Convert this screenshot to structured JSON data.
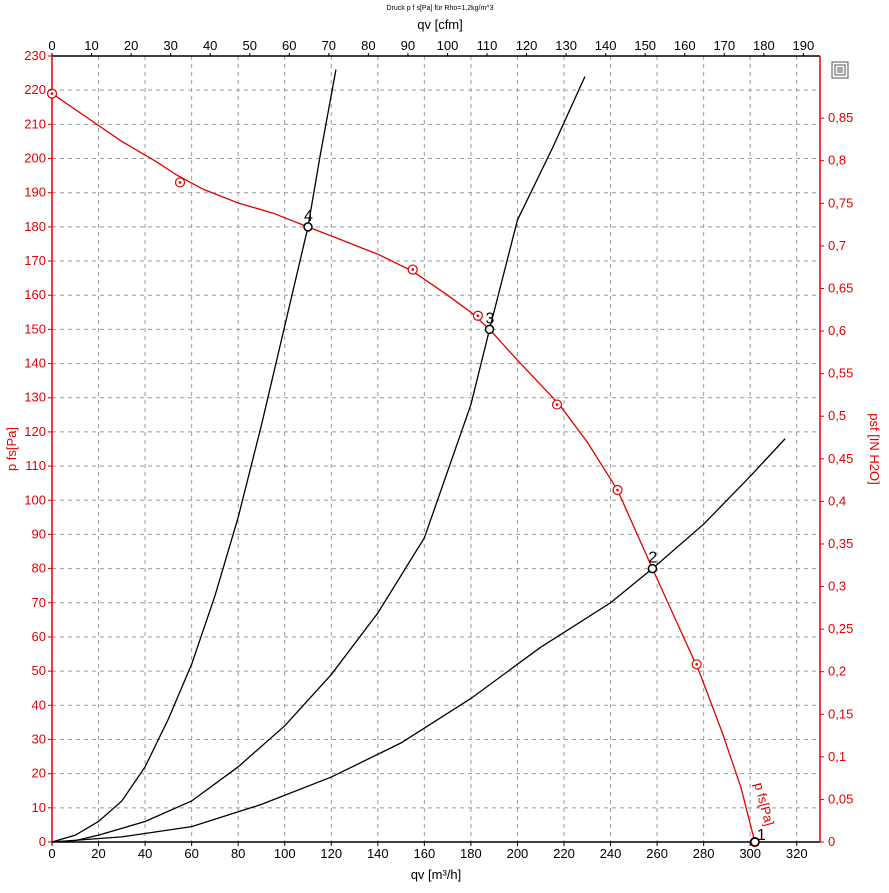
{
  "chart_data": {
    "type": "line",
    "title": "Druck p f s[Pa] für Rho=1,2kg/m^3",
    "xlabel": "qv [m³/h]",
    "x2label": "qv [cfm]",
    "ylabel": "p  fs[Pa]",
    "y2label": "psf [IN H2O]",
    "xlim": [
      0,
      330
    ],
    "ylim": [
      0,
      230
    ],
    "x2lim": [
      0,
      194.2
    ],
    "y2lim": [
      0,
      0.923
    ],
    "xticks": [
      "0",
      "20",
      "40",
      "60",
      "80",
      "100",
      "120",
      "140",
      "160",
      "180",
      "200",
      "220",
      "240",
      "260",
      "280",
      "300",
      "320"
    ],
    "x2ticks": [
      "0",
      "10",
      "20",
      "30",
      "40",
      "50",
      "60",
      "70",
      "80",
      "90",
      "100",
      "110",
      "120",
      "130",
      "140",
      "150",
      "160",
      "170",
      "180",
      "190"
    ],
    "yticks": [
      "0",
      "10",
      "20",
      "30",
      "40",
      "50",
      "60",
      "70",
      "80",
      "90",
      "100",
      "110",
      "120",
      "130",
      "140",
      "150",
      "160",
      "170",
      "180",
      "190",
      "200",
      "210",
      "220",
      "230"
    ],
    "y2ticks": [
      "0",
      "0,05",
      "0,1",
      "0,15",
      "0,2",
      "0,25",
      "0,3",
      "0,35",
      "0,4",
      "0,45",
      "0,5",
      "0,55",
      "0,6",
      "0,65",
      "0,7",
      "0,75",
      "0,8",
      "0,85"
    ],
    "grid": true,
    "series": [
      {
        "name": "p  fs[Pa]",
        "color": "#e00000",
        "x": [
          0,
          15,
          30,
          45,
          54,
          65,
          80,
          95,
          110,
          125,
          140,
          155,
          170,
          180,
          188,
          200,
          218,
          230,
          243,
          258,
          268,
          278,
          288,
          296,
          302
        ],
        "y": [
          219,
          212,
          205,
          199,
          195,
          191,
          187,
          184,
          180,
          176,
          172,
          167,
          160,
          155,
          150,
          141,
          128,
          117,
          103,
          80,
          65,
          50,
          32,
          16,
          0
        ],
        "markers_x": [
          0,
          55,
          155,
          183,
          217,
          243,
          277,
          302
        ],
        "markers_y": [
          219,
          193,
          167.5,
          154,
          128,
          103,
          52,
          0
        ]
      },
      {
        "name": "",
        "color": "#000000",
        "x": [
          0,
          30,
          60,
          90,
          120,
          150,
          180,
          210,
          240,
          258,
          280,
          300,
          315
        ],
        "y": [
          0,
          1.5,
          4.5,
          11,
          19,
          29,
          42,
          57,
          70,
          80,
          93,
          107,
          118
        ]
      },
      {
        "name": "",
        "color": "#000000",
        "x": [
          0,
          10,
          20,
          40,
          60,
          80,
          100,
          120,
          140,
          160,
          180,
          188,
          200,
          215,
          229
        ],
        "y": [
          0,
          0.4,
          2,
          6,
          12,
          22,
          34,
          49,
          67,
          89,
          128,
          150,
          182,
          203,
          224
        ]
      },
      {
        "name": "",
        "color": "#000000",
        "x": [
          0,
          10,
          20,
          30,
          40,
          50,
          60,
          70,
          80,
          90,
          100,
          110,
          115,
          122
        ],
        "y": [
          0,
          2,
          6,
          12,
          22,
          36,
          52,
          72,
          95,
          122,
          151,
          180,
          200,
          226
        ]
      }
    ],
    "operating_points": [
      {
        "label": "1",
        "x": 302,
        "y": 0
      },
      {
        "label": "2",
        "x": 258,
        "y": 80
      },
      {
        "label": "3",
        "x": 188,
        "y": 150
      },
      {
        "label": "4",
        "x": 110,
        "y": 180
      }
    ],
    "series_label": {
      "text": "p  fs[Pa]",
      "x": 300,
      "y": 0
    },
    "legend": "none"
  },
  "colors": {
    "red": "#e00000",
    "black": "#000000",
    "grid": "#9a9a9a"
  },
  "icons": {
    "corner": "export-icon"
  }
}
